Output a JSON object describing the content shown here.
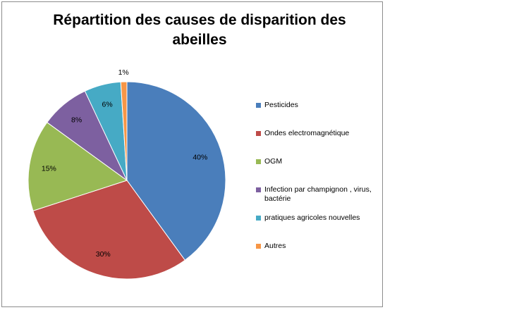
{
  "chart_data": {
    "type": "pie",
    "title": "Répartition des causes de disparition des abeilles",
    "categories": [
      "Pesticides",
      "Ondes electromagnétique",
      "OGM",
      "Infection par champignon , virus, bactérie",
      "pratiques agricoles nouvelles",
      "Autres"
    ],
    "values": [
      40,
      30,
      15,
      8,
      6,
      1
    ],
    "data_labels": [
      "40%",
      "30%",
      "15%",
      "8%",
      "6%",
      "1%"
    ],
    "colors": [
      "#4a7ebb",
      "#be4b48",
      "#98b954",
      "#7d60a0",
      "#46aac5",
      "#f79646"
    ],
    "legend_position": "right"
  }
}
